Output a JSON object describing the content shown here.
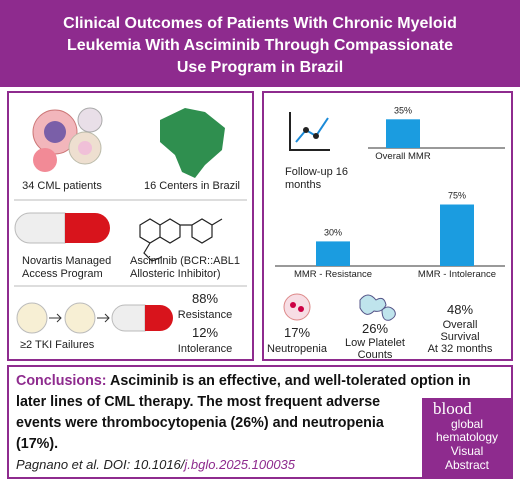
{
  "header": {
    "title_lines": [
      "Clinical Outcomes of Patients With Chronic Myeloid",
      "Leukemia With Asciminib Through Compassionate",
      "Use Program in Brazil"
    ]
  },
  "left_panel": {
    "patients": "34 CML patients",
    "centers": "16 Centers in Brazil",
    "program_lines": [
      "Novartis Managed",
      "Access Program"
    ],
    "drug_lines": [
      "Asciminib (BCR::ABL1",
      "Allosteric Inhibitor)"
    ],
    "tki": "≥2 TKI Failures",
    "resistance": {
      "value_label": "88%",
      "label": "Resistance"
    },
    "intolerance": {
      "value_label": "12%",
      "label": "Intolerance"
    }
  },
  "right_panel": {
    "followup_lines": [
      "Follow-up 16",
      "months"
    ],
    "mmr": [
      {
        "label": "Overall MMR",
        "value": 35,
        "value_label": "35%"
      },
      {
        "label": "MMR - Resistance",
        "value": 30,
        "value_label": "30%"
      },
      {
        "label": "MMR - Intolerance",
        "value": 75,
        "value_label": "75%"
      }
    ],
    "neutropenia": {
      "value_label": "17%",
      "label": "Neutropenia"
    },
    "platelets": {
      "value_label": "26%",
      "label_lines": [
        "Low Platelet",
        "Counts"
      ]
    },
    "survival": {
      "value_label": "48%",
      "label_lines": [
        "Overall",
        "Survival",
        "At 32 months"
      ]
    }
  },
  "conclusions": {
    "heading": "Conclusions:",
    "lines": [
      " Asciminib is an effective, and well-tolerated option in",
      "later lines of CML therapy. The most frequent adverse",
      "events were thrombocytopenia (26%) and neutropenia",
      "(17%)."
    ],
    "citation": "Pagnano et al. DOI: 10.1016/",
    "doi_suffix": "j.bglo.2025.100035"
  },
  "logo": {
    "lines": [
      "blood",
      "global",
      "hematology",
      "Visual",
      "Abstract"
    ]
  }
}
